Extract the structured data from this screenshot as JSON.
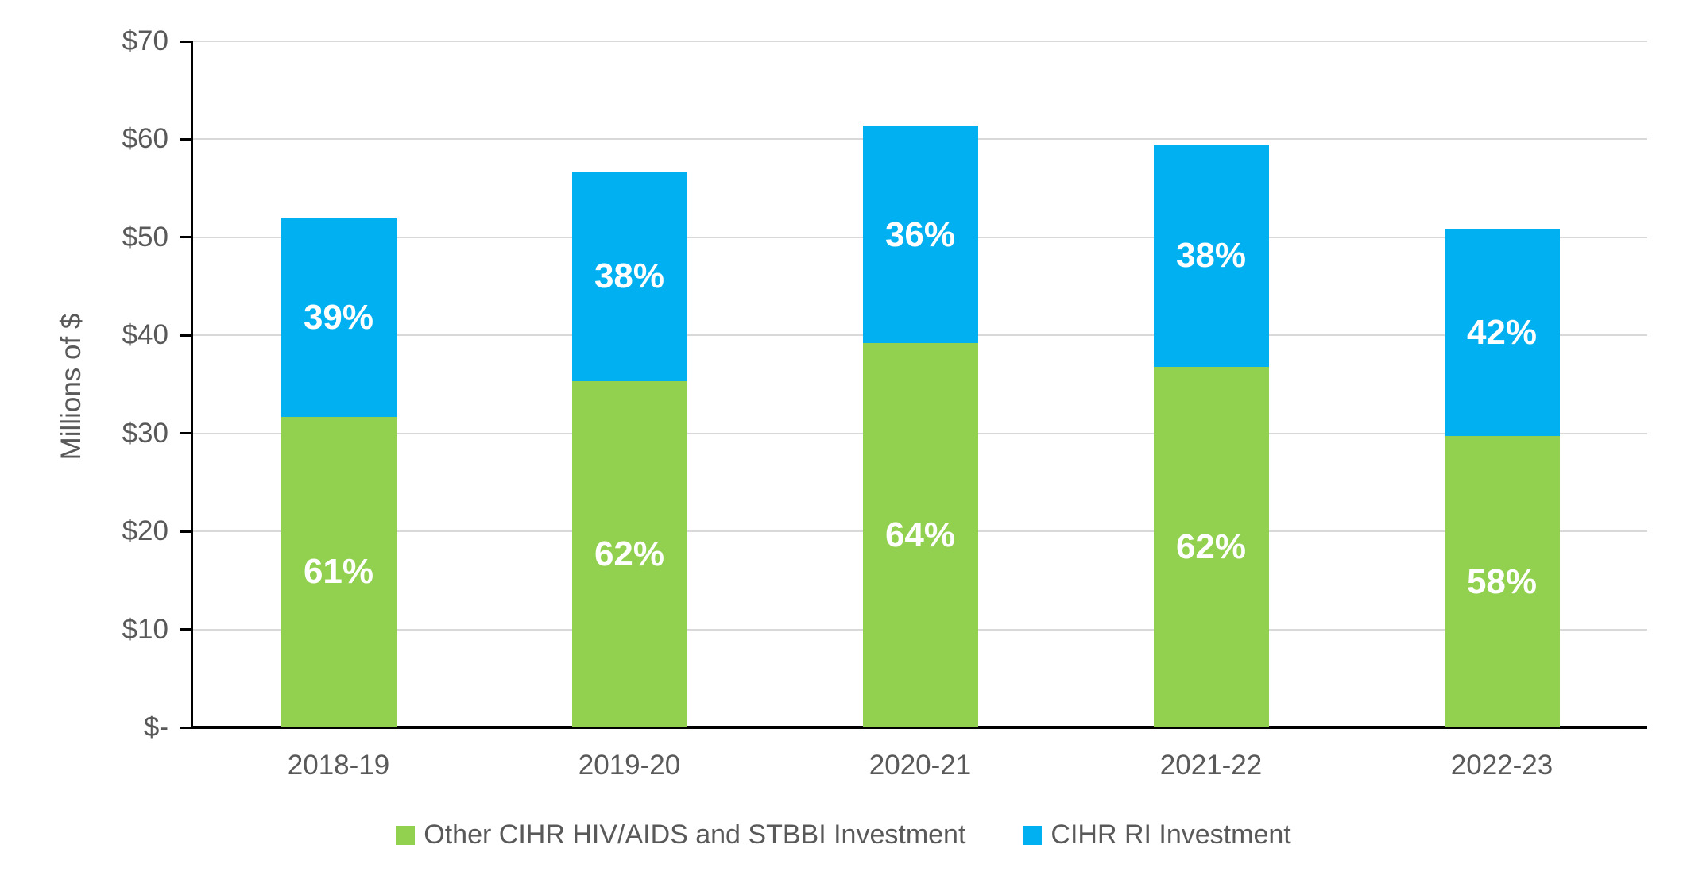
{
  "figure": {
    "background": "#FFFFFF",
    "y_axis_title": "Millions of $",
    "y_tick_labels": [
      "$70",
      "$60",
      "$50",
      "$40",
      "$30",
      "$20",
      "$10",
      "$-"
    ],
    "axis_color": "#000000",
    "gridline_color": "#D9D9D9",
    "text_color": "#595959"
  },
  "legend": {
    "items": [
      {
        "label": "Other CIHR HIV/AIDS and STBBI Investment",
        "color": "#92D050"
      },
      {
        "label": "CIHR RI Investment",
        "color": "#00B0F0"
      }
    ]
  },
  "chart_data": {
    "type": "bar",
    "stacked": true,
    "categories": [
      "2018-19",
      "2019-20",
      "2020-21",
      "2021-22",
      "2022-23"
    ],
    "series": [
      {
        "name": "Other CIHR HIV/AIDS and STBBI Investment",
        "color": "#92D050",
        "values": [
          31.7,
          35.3,
          39.2,
          36.8,
          29.7
        ],
        "labels": [
          "61%",
          "62%",
          "64%",
          "62%",
          "58%"
        ]
      },
      {
        "name": "CIHR RI Investment",
        "color": "#00B0F0",
        "values": [
          20.2,
          21.4,
          22.1,
          22.6,
          21.2
        ],
        "labels": [
          "39%",
          "38%",
          "36%",
          "38%",
          "42%"
        ]
      }
    ],
    "totals": [
      51.9,
      56.7,
      61.3,
      59.4,
      50.9
    ],
    "title": "",
    "xlabel": "",
    "ylabel": "Millions of $",
    "ylim": [
      0,
      70
    ],
    "ytick_step": 10,
    "grid": true,
    "legend_position": "bottom",
    "bar_label_color": "#FFFFFF"
  }
}
